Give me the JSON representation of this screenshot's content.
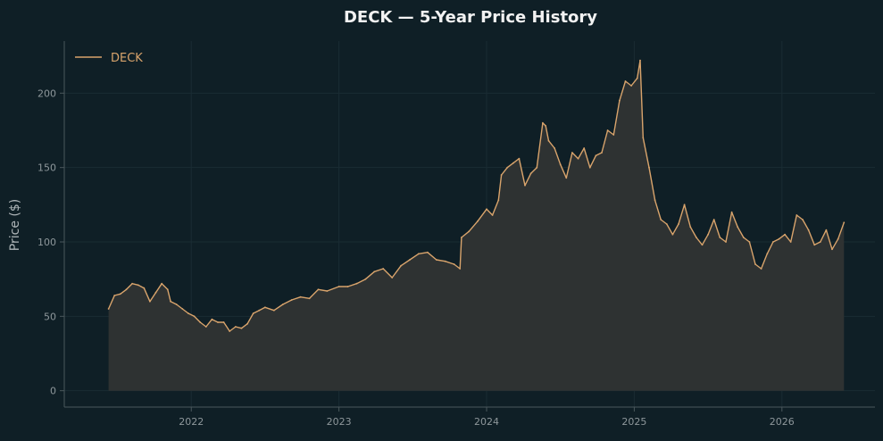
{
  "colors": {
    "background": "#0f1f26",
    "line": "#d9a46c",
    "fill": "#2e3232",
    "axis": "#4a575c",
    "grid": "#1a2c33",
    "tick_text": "#8e979b",
    "label_text": "#aeb5b8",
    "title_text": "#f2f2f2",
    "legend_text": "#d9a46c"
  },
  "chart_data": {
    "type": "area",
    "title": "DECK — 5-Year Price History",
    "xlabel": "",
    "ylabel": "Price ($)",
    "xlim": [
      2021.14,
      2026.63
    ],
    "ylim": [
      -11,
      235
    ],
    "x_ticks": [
      2022,
      2023,
      2024,
      2025,
      2026
    ],
    "x_tick_labels": [
      "2022",
      "2023",
      "2024",
      "2025",
      "2026"
    ],
    "y_ticks": [
      0,
      50,
      100,
      150,
      200
    ],
    "y_tick_labels": [
      "0",
      "50",
      "100",
      "150",
      "200"
    ],
    "grid": true,
    "legend": {
      "position": "top-left",
      "entries": [
        "DECK"
      ]
    },
    "series": [
      {
        "name": "DECK",
        "x": [
          2021.44,
          2021.48,
          2021.52,
          2021.56,
          2021.6,
          2021.64,
          2021.68,
          2021.72,
          2021.76,
          2021.8,
          2021.84,
          2021.86,
          2021.9,
          2021.94,
          2021.98,
          2022.02,
          2022.06,
          2022.1,
          2022.14,
          2022.18,
          2022.22,
          2022.26,
          2022.3,
          2022.34,
          2022.38,
          2022.42,
          2022.46,
          2022.5,
          2022.56,
          2022.62,
          2022.68,
          2022.74,
          2022.8,
          2022.86,
          2022.92,
          2023.0,
          2023.06,
          2023.12,
          2023.18,
          2023.24,
          2023.3,
          2023.36,
          2023.42,
          2023.48,
          2023.54,
          2023.6,
          2023.66,
          2023.72,
          2023.78,
          2023.82,
          2023.83,
          2023.88,
          2023.94,
          2024.0,
          2024.04,
          2024.08,
          2024.1,
          2024.14,
          2024.18,
          2024.22,
          2024.26,
          2024.3,
          2024.34,
          2024.38,
          2024.4,
          2024.42,
          2024.46,
          2024.5,
          2024.54,
          2024.58,
          2024.62,
          2024.66,
          2024.7,
          2024.74,
          2024.78,
          2024.82,
          2024.86,
          2024.9,
          2024.94,
          2024.98,
          2025.02,
          2025.04,
          2025.06,
          2025.1,
          2025.14,
          2025.18,
          2025.22,
          2025.26,
          2025.3,
          2025.34,
          2025.38,
          2025.42,
          2025.46,
          2025.5,
          2025.54,
          2025.58,
          2025.62,
          2025.66,
          2025.7,
          2025.74,
          2025.78,
          2025.82,
          2025.86,
          2025.9,
          2025.94,
          2025.98,
          2026.02,
          2026.06,
          2026.1,
          2026.14,
          2026.18,
          2026.22,
          2026.26,
          2026.3,
          2026.34,
          2026.38,
          2026.42
        ],
        "values": [
          55,
          64,
          65,
          68,
          72,
          71,
          69,
          60,
          66,
          72,
          68,
          60,
          58,
          55,
          52,
          50,
          46,
          43,
          48,
          46,
          46,
          40,
          43,
          42,
          45,
          52,
          54,
          56,
          54,
          58,
          61,
          63,
          62,
          68,
          67,
          70,
          70,
          72,
          75,
          80,
          82,
          76,
          84,
          88,
          92,
          93,
          88,
          87,
          85,
          82,
          103,
          107,
          114,
          122,
          118,
          128,
          145,
          150,
          153,
          156,
          138,
          146,
          150,
          180,
          178,
          168,
          163,
          152,
          143,
          160,
          156,
          163,
          150,
          158,
          160,
          175,
          172,
          195,
          208,
          205,
          210,
          222,
          170,
          150,
          128,
          115,
          112,
          105,
          112,
          125,
          110,
          103,
          98,
          105,
          115,
          103,
          100,
          120,
          110,
          103,
          100,
          85,
          82,
          92,
          100,
          102,
          105,
          100,
          118,
          115,
          108,
          98,
          100,
          108,
          95,
          102,
          113
        ]
      }
    ]
  }
}
